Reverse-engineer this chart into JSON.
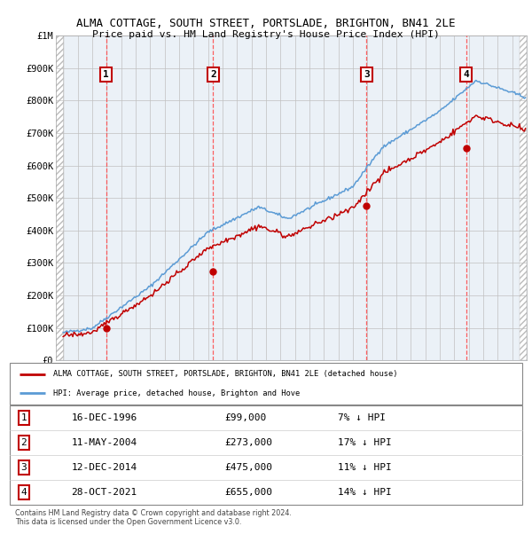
{
  "title1": "ALMA COTTAGE, SOUTH STREET, PORTSLADE, BRIGHTON, BN41 2LE",
  "title2": "Price paid vs. HM Land Registry's House Price Index (HPI)",
  "ylim": [
    0,
    1000000
  ],
  "yticks": [
    0,
    100000,
    200000,
    300000,
    400000,
    500000,
    600000,
    700000,
    800000,
    900000,
    1000000
  ],
  "ytick_labels": [
    "£0",
    "£100K",
    "£200K",
    "£300K",
    "£400K",
    "£500K",
    "£600K",
    "£700K",
    "£800K",
    "£900K",
    "£1M"
  ],
  "xlim_start": 1993.5,
  "xlim_end": 2026.0,
  "hpi_color": "#5b9bd5",
  "price_color": "#c00000",
  "sale_marker_color": "#c00000",
  "grid_color": "#c0c0c0",
  "panel_bg": "#dce6f1",
  "transactions": [
    {
      "label": 1,
      "year": 1996.96,
      "price": 99000,
      "date": "16-DEC-1996",
      "pct": "7%"
    },
    {
      "label": 2,
      "year": 2004.36,
      "price": 273000,
      "date": "11-MAY-2004",
      "pct": "17%"
    },
    {
      "label": 3,
      "year": 2014.95,
      "price": 475000,
      "date": "12-DEC-2014",
      "pct": "11%"
    },
    {
      "label": 4,
      "year": 2021.83,
      "price": 655000,
      "date": "28-OCT-2021",
      "pct": "14%"
    }
  ],
  "legend_line1": "ALMA COTTAGE, SOUTH STREET, PORTSLADE, BRIGHTON, BN41 2LE (detached house)",
  "legend_line2": "HPI: Average price, detached house, Brighton and Hove",
  "footer1": "Contains HM Land Registry data © Crown copyright and database right 2024.",
  "footer2": "This data is licensed under the Open Government Licence v3.0.",
  "table_rows": [
    {
      "num": 1,
      "date": "16-DEC-1996",
      "price": "£99,000",
      "pct": "7% ↓ HPI"
    },
    {
      "num": 2,
      "date": "11-MAY-2004",
      "price": "£273,000",
      "pct": "17% ↓ HPI"
    },
    {
      "num": 3,
      "date": "12-DEC-2014",
      "price": "£475,000",
      "pct": "11% ↓ HPI"
    },
    {
      "num": 4,
      "date": "28-OCT-2021",
      "price": "£655,000",
      "pct": "14% ↓ HPI"
    }
  ]
}
